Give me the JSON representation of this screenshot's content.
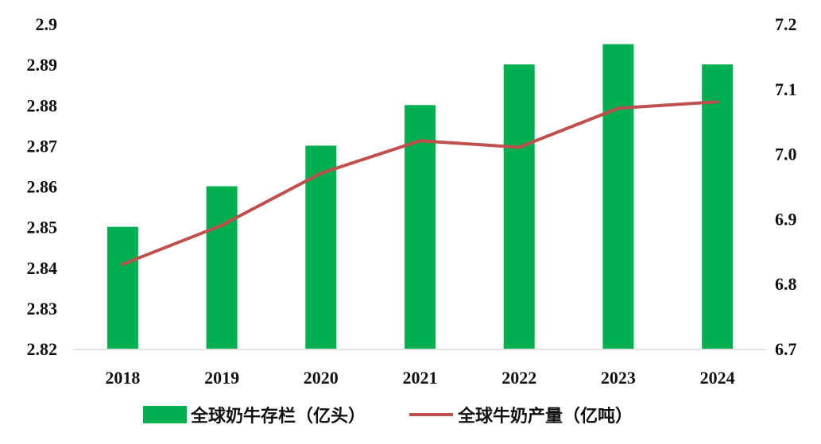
{
  "chart_data": {
    "type": "bar",
    "title": "",
    "xlabel": "",
    "categories": [
      "2018",
      "2019",
      "2020",
      "2021",
      "2022",
      "2023",
      "2024"
    ],
    "y_left": {
      "ylim": [
        2.82,
        2.9
      ],
      "ticks": [
        "2.82",
        "2.83",
        "2.84",
        "2.85",
        "2.86",
        "2.87",
        "2.88",
        "2.89",
        "2.9"
      ]
    },
    "y_right": {
      "ylim": [
        6.7,
        7.2
      ],
      "ticks": [
        "6.7",
        "6.8",
        "6.9",
        "7.0",
        "7.1",
        "7.2"
      ]
    },
    "series": [
      {
        "name": "全球奶牛存栏（亿头）",
        "type": "bar",
        "axis": "left",
        "color": "#00b050",
        "values": [
          2.85,
          2.86,
          2.87,
          2.88,
          2.89,
          2.895,
          2.89
        ]
      },
      {
        "name": "全球牛奶产量（亿吨）",
        "type": "line",
        "axis": "right",
        "color": "#c0504d",
        "values": [
          6.83,
          6.89,
          6.97,
          7.02,
          7.01,
          7.07,
          7.08
        ]
      }
    ],
    "legend_position": "bottom",
    "grid": false
  }
}
